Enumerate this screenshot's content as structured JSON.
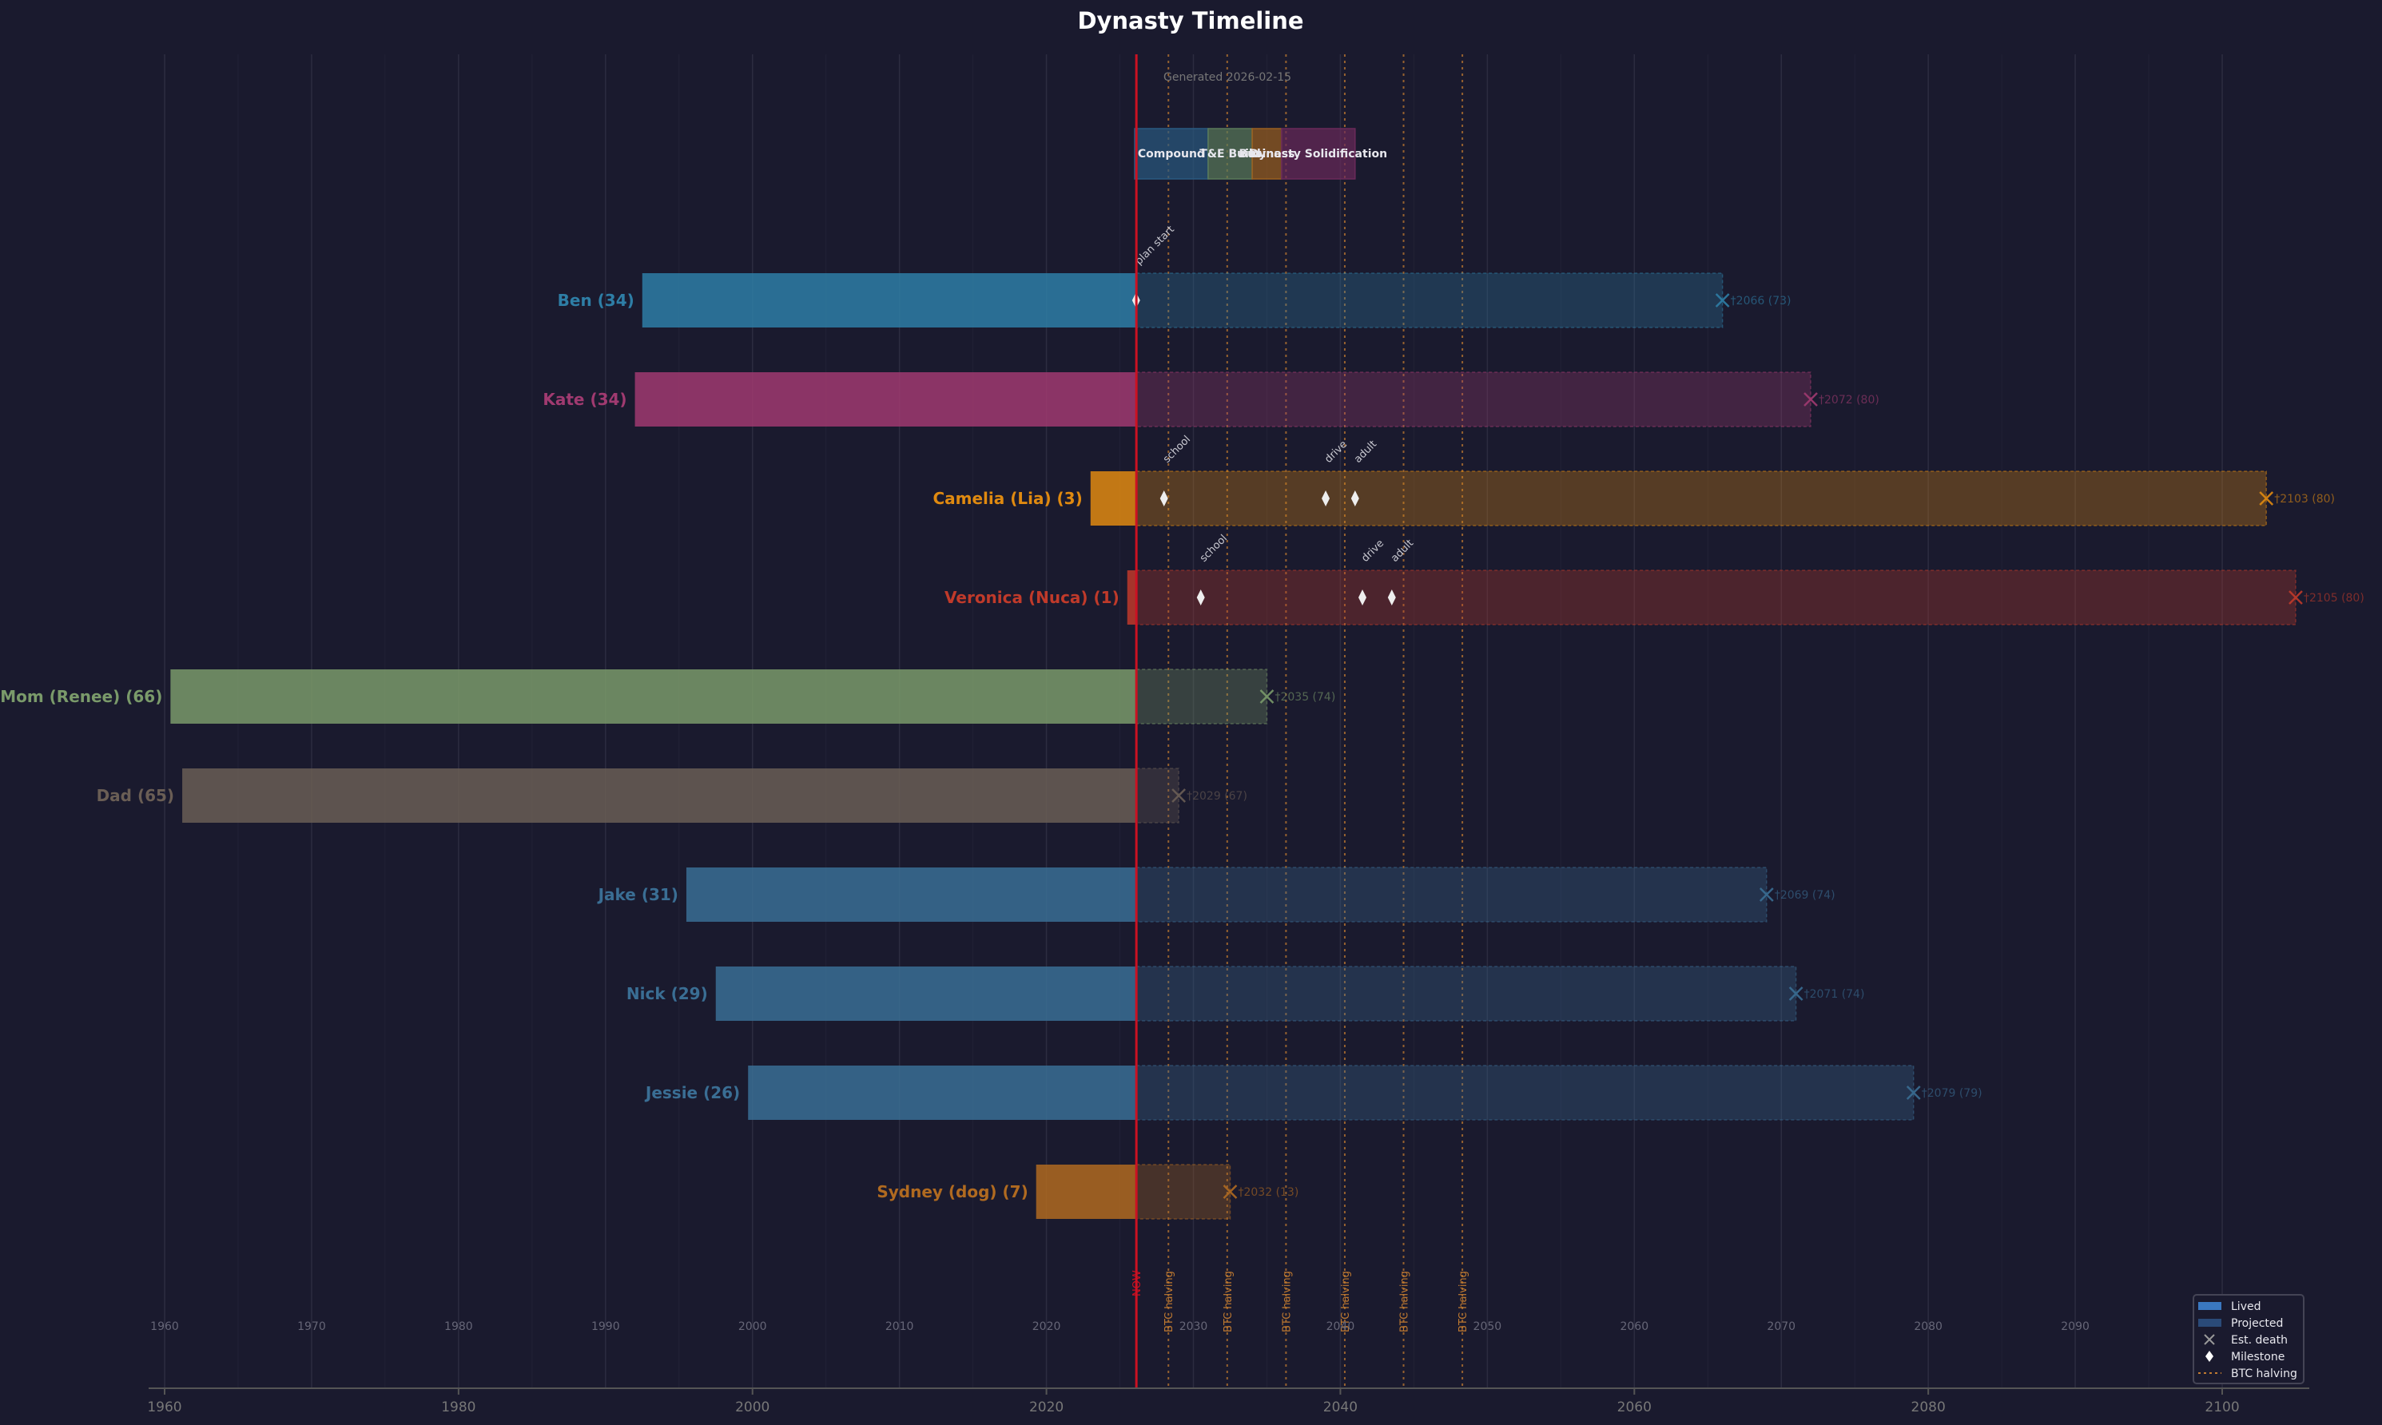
{
  "chart_data": {
    "type": "timeline",
    "title": "Dynasty Timeline",
    "subtitle": "Generated 2026-02-15",
    "now_year": 2026.12,
    "now_label": "NOW",
    "xlim": [
      1958,
      2106
    ],
    "major_ticks": [
      1960,
      1980,
      2000,
      2020,
      2040,
      2060,
      2080,
      2100
    ],
    "minor_ticks": [
      1960,
      1970,
      1980,
      1990,
      2000,
      2010,
      2020,
      2030,
      2040,
      2050,
      2060,
      2070,
      2080,
      2090,
      2100
    ],
    "grid": true,
    "btc_halving_label": "BTC halving",
    "btc_halvings": [
      2028.3,
      2032.3,
      2036.3,
      2040.3,
      2044.3,
      2048.3
    ],
    "phases": [
      {
        "name": "Compound",
        "start": 2026.0,
        "end": 2031.0,
        "color": "#2a5a80"
      },
      {
        "name": "T&E Build",
        "start": 2031.0,
        "end": 2034.0,
        "color": "#5a7a5a"
      },
      {
        "name": "Business",
        "start": 2034.0,
        "end": 2036.0,
        "color": "#9a6020"
      },
      {
        "name": "Dynasty Solidification",
        "start": 2036.0,
        "end": 2041.0,
        "color": "#6a2a5a"
      }
    ],
    "people": [
      {
        "label": "Ben (34)",
        "birth": 1992.5,
        "death": 2066,
        "death_label": "†2066 (73)",
        "color": "#2e7ea6",
        "milestones": [
          {
            "year": 2026.1,
            "label": "plan start"
          }
        ]
      },
      {
        "label": "Kate (34)",
        "birth": 1992.0,
        "death": 2072,
        "death_label": "†2072 (80)",
        "color": "#a03a70",
        "milestones": []
      },
      {
        "label": "Camelia (Lia) (3)",
        "birth": 2023.0,
        "death": 2103,
        "death_label": "†2103 (80)",
        "color": "#e08a10",
        "milestones": [
          {
            "year": 2028,
            "label": "school"
          },
          {
            "year": 2039,
            "label": "drive"
          },
          {
            "year": 2041,
            "label": "adult"
          }
        ]
      },
      {
        "label": "Veronica (Nuca) (1)",
        "birth": 2025.5,
        "death": 2105,
        "death_label": "†2105 (80)",
        "color": "#c03a2a",
        "milestones": [
          {
            "year": 2030.5,
            "label": "school"
          },
          {
            "year": 2041.5,
            "label": "drive"
          },
          {
            "year": 2043.5,
            "label": "adult"
          }
        ]
      },
      {
        "label": "Mom (Renee) (66)",
        "birth": 1960.4,
        "death": 2035,
        "death_label": "†2035 (74)",
        "color": "#7a9a6a",
        "milestones": []
      },
      {
        "label": "Dad (65)",
        "birth": 1961.2,
        "death": 2029,
        "death_label": "†2029 (67)",
        "color": "#6a5e55",
        "milestones": []
      },
      {
        "label": "Jake (31)",
        "birth": 1995.5,
        "death": 2069,
        "death_label": "†2069 (74)",
        "color": "#3a6e94",
        "milestones": []
      },
      {
        "label": "Nick (29)",
        "birth": 1997.5,
        "death": 2071,
        "death_label": "†2071 (74)",
        "color": "#3a6e94",
        "milestones": []
      },
      {
        "label": "Jessie (26)",
        "birth": 1999.7,
        "death": 2079,
        "death_label": "†2079 (79)",
        "color": "#3a6e94",
        "milestones": []
      },
      {
        "label": "Sydney (dog) (7)",
        "birth": 2019.3,
        "death": 2032.5,
        "death_label": "†2032 (13)",
        "color": "#b06a20",
        "milestones": []
      }
    ],
    "legend": {
      "position": "bottom-right",
      "items": [
        {
          "label": "Lived",
          "kind": "lived"
        },
        {
          "label": "Projected",
          "kind": "projected"
        },
        {
          "label": "Est. death",
          "kind": "death"
        },
        {
          "label": "Milestone",
          "kind": "milestone"
        },
        {
          "label": "BTC halving",
          "kind": "halving"
        }
      ]
    },
    "colors": {
      "background": "#1a1a2e",
      "now_line": "#cc1122",
      "halving": "#c07a30",
      "axis_text": "#777777",
      "grid": "#2c2c40"
    }
  }
}
